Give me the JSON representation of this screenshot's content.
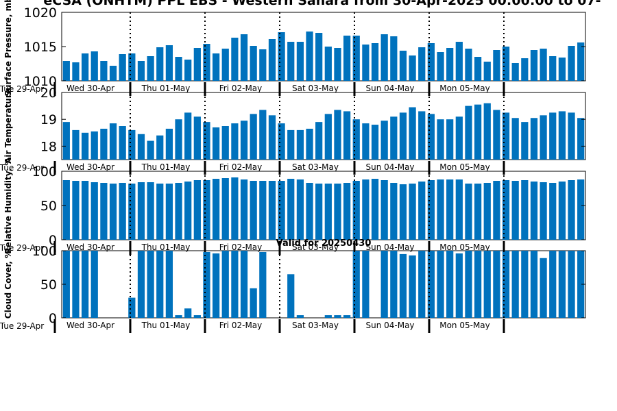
{
  "figure": {
    "title": "eCSA (ONHTM) PPL EBS - Western Sahara from 30-Apr-2025 00:00:00 to 07-",
    "subtitle": "Valid for 20250430"
  },
  "colors": {
    "bar": "#0072bd",
    "axis": "#000000",
    "divider": "#000000"
  },
  "chart_data": [
    {
      "type": "bar",
      "ylabel": "Surface Pressure, mb",
      "ylim": [
        1010,
        1020
      ],
      "yticks": [
        1010,
        1015,
        1020
      ],
      "grid": false,
      "x_start_label": "Tue 29-Apr",
      "day_labels": [
        "Wed 30-Apr",
        "Thu 01-May",
        "Fri 02-May",
        "Sat 03-May",
        "Sun 04-May",
        "Mon 05-May"
      ],
      "values": [
        1012.9,
        1012.7,
        1014.0,
        1014.3,
        1012.9,
        1012.2,
        1013.9,
        1014.0,
        1012.9,
        1013.6,
        1014.9,
        1015.2,
        1013.5,
        1013.1,
        1014.8,
        1015.4,
        1014.0,
        1014.7,
        1016.3,
        1016.8,
        1015.1,
        1014.6,
        1016.1,
        1017.1,
        1015.7,
        1015.7,
        1017.2,
        1017.0,
        1015.0,
        1014.8,
        1016.6,
        1016.6,
        1015.3,
        1015.5,
        1016.8,
        1016.5,
        1014.4,
        1013.7,
        1014.9,
        1015.5,
        1014.2,
        1014.8,
        1015.7,
        1014.7,
        1013.5,
        1012.8,
        1014.5,
        1015.0,
        1012.6,
        1013.3,
        1014.5,
        1014.7,
        1013.6,
        1013.4,
        1015.1,
        1015.6
      ]
    },
    {
      "type": "bar",
      "ylabel": "Air Temperature",
      "ylim": [
        17.5,
        20
      ],
      "yticks": [
        18,
        19,
        20
      ],
      "grid": false,
      "x_start_label": "Tue 29-Apr",
      "day_labels": [
        "Wed 30-Apr",
        "Thu 01-May",
        "Fri 02-May",
        "Sat 03-May",
        "Sun 04-May",
        "Mon 05-May"
      ],
      "values": [
        18.9,
        18.6,
        18.5,
        18.55,
        18.65,
        18.85,
        18.75,
        18.6,
        18.45,
        18.2,
        18.4,
        18.65,
        19.0,
        19.25,
        19.1,
        18.9,
        18.7,
        18.75,
        18.85,
        18.95,
        19.2,
        19.35,
        19.15,
        18.85,
        18.6,
        18.6,
        18.65,
        18.9,
        19.2,
        19.35,
        19.3,
        19.0,
        18.85,
        18.8,
        18.95,
        19.1,
        19.25,
        19.45,
        19.3,
        19.2,
        19.0,
        19.0,
        19.1,
        19.5,
        19.55,
        19.6,
        19.35,
        19.25,
        19.05,
        18.9,
        19.05,
        19.15,
        19.25,
        19.3,
        19.25,
        19.05
      ]
    },
    {
      "type": "bar",
      "ylabel": "Relative Humidity, %",
      "ylim": [
        0,
        100
      ],
      "yticks": [
        0,
        50,
        100
      ],
      "grid": false,
      "x_start_label": "Tue 29-Apr",
      "day_labels": [
        "Wed 30-Apr",
        "Thu 01-May",
        "Fri 02-May",
        "Sat 03-May",
        "Sun 04-May",
        "Mon 05-May"
      ],
      "values": [
        87,
        86,
        86,
        84,
        83,
        82,
        83,
        82,
        84,
        84,
        82,
        82,
        83,
        85,
        87,
        87,
        89,
        90,
        91,
        88,
        86,
        86,
        86,
        86,
        89,
        88,
        83,
        82,
        82,
        82,
        83,
        86,
        88,
        89,
        87,
        83,
        81,
        82,
        85,
        87,
        88,
        88,
        88,
        82,
        82,
        83,
        86,
        87,
        86,
        87,
        85,
        84,
        83,
        85,
        87,
        88
      ]
    },
    {
      "type": "bar",
      "ylabel": "Cloud Cover, %",
      "ylim": [
        0,
        100
      ],
      "yticks": [
        0,
        50,
        100
      ],
      "grid": false,
      "x_start_label": "Tue 29-Apr",
      "day_labels": [
        "Wed 30-Apr",
        "Thu 01-May",
        "Fri 02-May",
        "Sat 03-May",
        "Sun 04-May",
        "Mon 05-May"
      ],
      "values": [
        100,
        100,
        100,
        100,
        0,
        0,
        0,
        30,
        100,
        100,
        100,
        100,
        4,
        14,
        4,
        98,
        96,
        100,
        100,
        100,
        44,
        98,
        0,
        0,
        65,
        4,
        0,
        0,
        4,
        4,
        4,
        100,
        100,
        0,
        100,
        100,
        95,
        93,
        100,
        100,
        100,
        100,
        96,
        100,
        100,
        100,
        100,
        100,
        100,
        100,
        100,
        89,
        100,
        100,
        100,
        100
      ]
    }
  ]
}
